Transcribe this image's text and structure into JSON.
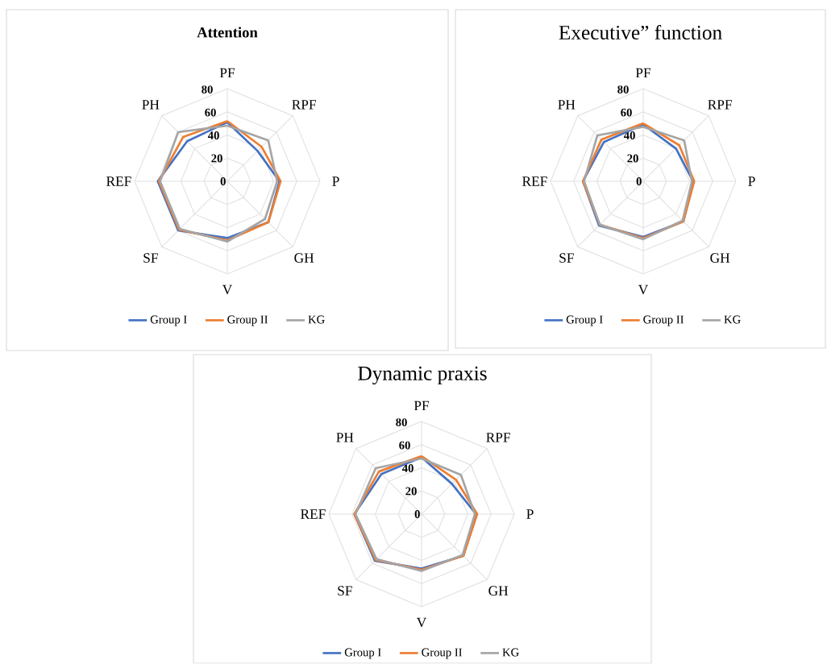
{
  "chart_data": [
    {
      "type": "radar",
      "title": "Attention",
      "categories": [
        "PF",
        "RPF",
        "P",
        "GH",
        "V",
        "SF",
        "REF",
        "PH"
      ],
      "ylim": [
        0,
        80
      ],
      "yticks": [
        0,
        20,
        40,
        60,
        80
      ],
      "grid": true,
      "legend": "bottom",
      "series": [
        {
          "name": "Group I",
          "color": "#4472c4",
          "values": [
            51,
            37,
            45,
            50,
            49,
            60,
            60,
            49
          ]
        },
        {
          "name": "Group II",
          "color": "#ed7d31",
          "values": [
            52,
            42,
            46,
            50,
            51,
            59,
            59,
            54
          ]
        },
        {
          "name": "KG",
          "color": "#a5a5a5",
          "values": [
            48,
            50,
            43,
            46,
            52,
            58,
            58,
            60
          ]
        }
      ]
    },
    {
      "type": "radar",
      "title": "Executive” function",
      "categories": [
        "PF",
        "RPF",
        "P",
        "GH",
        "V",
        "SF",
        "REF",
        "PH"
      ],
      "ylim": [
        0,
        80
      ],
      "yticks": [
        0,
        20,
        40,
        60,
        80
      ],
      "grid": true,
      "legend": "bottom",
      "series": [
        {
          "name": "Group I",
          "color": "#4472c4",
          "values": [
            49,
            40,
            43,
            49,
            48,
            54,
            52,
            48
          ]
        },
        {
          "name": "Group II",
          "color": "#ed7d31",
          "values": [
            50,
            44,
            44,
            49,
            49,
            53,
            52,
            51
          ]
        },
        {
          "name": "KG",
          "color": "#a5a5a5",
          "values": [
            47,
            50,
            42,
            48,
            50,
            53,
            51,
            56
          ]
        }
      ]
    },
    {
      "type": "radar",
      "title": "Dynamic praxis",
      "categories": [
        "PF",
        "RPF",
        "P",
        "GH",
        "V",
        "SF",
        "REF",
        "PH"
      ],
      "ylim": [
        0,
        80
      ],
      "yticks": [
        0,
        20,
        40,
        60,
        80
      ],
      "grid": true,
      "legend": "bottom",
      "series": [
        {
          "name": "Group I",
          "color": "#4472c4",
          "values": [
            49,
            37,
            47,
            51,
            47,
            57,
            58,
            49
          ]
        },
        {
          "name": "Group II",
          "color": "#ed7d31",
          "values": [
            50,
            42,
            48,
            51,
            48,
            56,
            58,
            52
          ]
        },
        {
          "name": "KG",
          "color": "#a5a5a5",
          "values": [
            48,
            48,
            46,
            50,
            49,
            55,
            57,
            56
          ]
        }
      ]
    }
  ]
}
